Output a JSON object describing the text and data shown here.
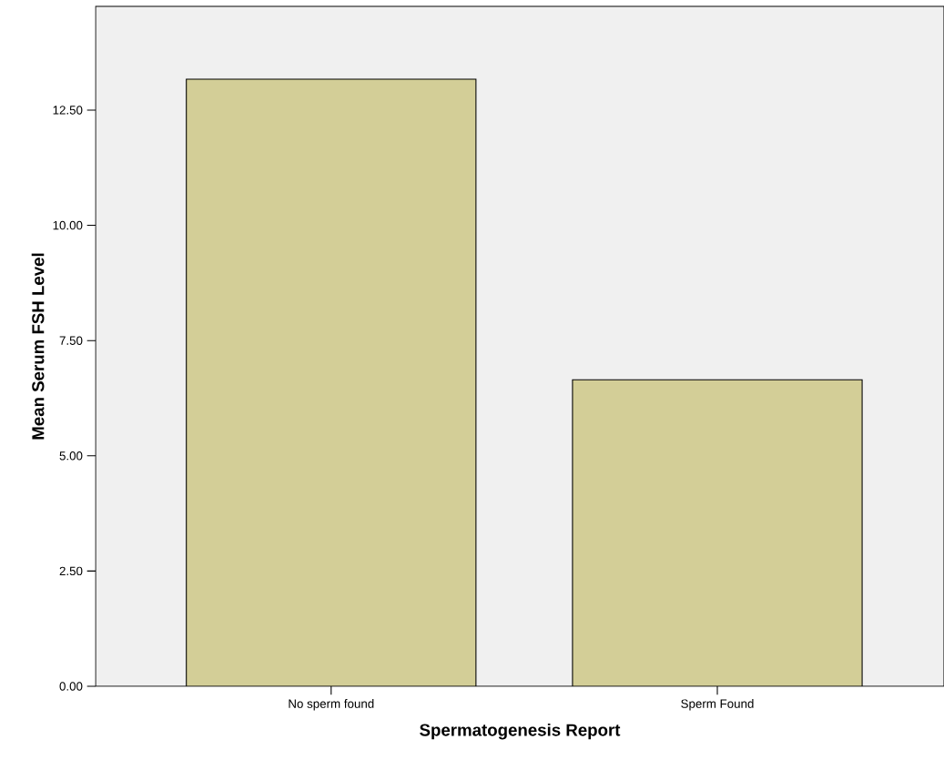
{
  "chart_data": {
    "type": "bar",
    "xlabel": "Spermatogenesis Report",
    "ylabel": "Mean Serum FSH Level",
    "categories": [
      "No sperm found",
      "Sperm Found"
    ],
    "values": [
      13.17,
      6.65
    ],
    "color": "#d3ce97",
    "ylim": [
      0,
      14.75
    ],
    "yticks": [
      {
        "value": 0,
        "label": "0.00"
      },
      {
        "value": 2.5,
        "label": "2.50"
      },
      {
        "value": 5,
        "label": "5.00"
      },
      {
        "value": 7.5,
        "label": "7.50"
      },
      {
        "value": 10,
        "label": "10.00"
      },
      {
        "value": 12.5,
        "label": "12.50"
      }
    ]
  }
}
